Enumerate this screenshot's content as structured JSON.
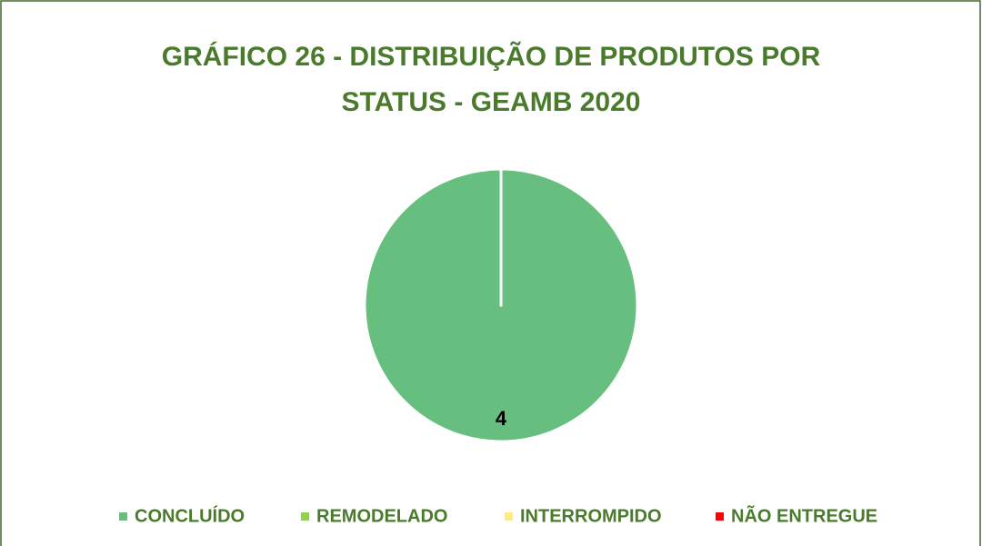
{
  "chart_data": {
    "type": "pie",
    "title": "GRÁFICO 26 - DISTRIBUIÇÃO DE PRODUTOS POR STATUS - GEAMB 2020",
    "categories": [
      "CONCLUÍDO",
      "REMODELADO",
      "INTERROMPIDO",
      "NÃO ENTREGUE"
    ],
    "values": [
      4,
      0,
      0,
      0
    ],
    "colors": [
      "#66bf7f",
      "#92d050",
      "#ffeb84",
      "#ff0000"
    ],
    "legend": "bottom"
  }
}
